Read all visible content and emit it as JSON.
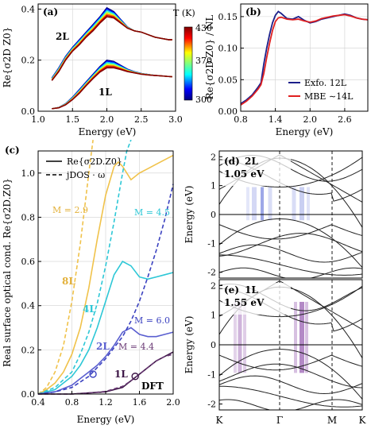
{
  "figure": {
    "panels": {
      "a": {
        "label": "(a)",
        "tag_2L": "2L",
        "tag_1L": "1L"
      },
      "b": {
        "label": "(b)"
      },
      "c": {
        "label": "(c)"
      },
      "d": {
        "label": "(d)",
        "layer": "2L",
        "energy": "1.05 eV"
      },
      "e": {
        "label": "(e)",
        "layer": "1L",
        "energy": "1.55 eV"
      }
    }
  },
  "chart_data": [
    {
      "panel": "a",
      "type": "line",
      "xlabel": "Energy (eV)",
      "ylabel": "Re{σ2D Z0}",
      "xlim": [
        1.0,
        3.0
      ],
      "ylim": [
        0.0,
        0.42
      ],
      "xticks": [
        "1.0",
        "1.5",
        "2.0",
        "2.5",
        "3.0"
      ],
      "yticks": [
        "0.0",
        "0.2",
        "0.4"
      ],
      "colorbar": {
        "title": "T (K)",
        "ticks": [
          "300",
          "370",
          "430"
        ],
        "range": [
          300,
          430
        ]
      },
      "groups": [
        {
          "label": "2L",
          "temperatures": [
            300,
            320,
            340,
            360,
            380,
            400,
            420,
            430
          ],
          "x": [
            1.2,
            1.3,
            1.4,
            1.5,
            1.6,
            1.7,
            1.8,
            1.9,
            2.0,
            2.1,
            2.2,
            2.3,
            2.4,
            2.5,
            2.6,
            2.7,
            2.8,
            2.9,
            2.95
          ],
          "y_at_300K": [
            0.13,
            0.17,
            0.215,
            0.25,
            0.28,
            0.31,
            0.34,
            0.37,
            0.405,
            0.39,
            0.36,
            0.33,
            0.315,
            0.31,
            0.3,
            0.29,
            0.285,
            0.28,
            0.28
          ],
          "y_at_430K": [
            0.12,
            0.155,
            0.2,
            0.235,
            0.26,
            0.29,
            0.315,
            0.345,
            0.37,
            0.365,
            0.345,
            0.325,
            0.315,
            0.31,
            0.3,
            0.29,
            0.285,
            0.28,
            0.28
          ]
        },
        {
          "label": "1L",
          "temperatures": [
            300,
            320,
            340,
            360,
            380,
            400,
            420,
            430
          ],
          "x": [
            1.2,
            1.3,
            1.4,
            1.5,
            1.6,
            1.7,
            1.8,
            1.9,
            2.0,
            2.1,
            2.2,
            2.3,
            2.4,
            2.5,
            2.6,
            2.7,
            2.8,
            2.9,
            2.95
          ],
          "y_at_300K": [
            0.01,
            0.015,
            0.03,
            0.055,
            0.085,
            0.115,
            0.145,
            0.175,
            0.2,
            0.195,
            0.18,
            0.165,
            0.155,
            0.148,
            0.144,
            0.14,
            0.138,
            0.136,
            0.135
          ],
          "y_at_430K": [
            0.01,
            0.013,
            0.025,
            0.045,
            0.07,
            0.1,
            0.128,
            0.153,
            0.17,
            0.17,
            0.163,
            0.155,
            0.15,
            0.145,
            0.142,
            0.14,
            0.138,
            0.136,
            0.135
          ]
        }
      ]
    },
    {
      "panel": "b",
      "type": "line",
      "xlabel": "Energy (eV)",
      "ylabel": "Re{σ2D·Z0} / NL",
      "xlim": [
        0.8,
        3.0
      ],
      "ylim": [
        0.0,
        0.17
      ],
      "xticks": [
        "0.8",
        "1.4",
        "2.0",
        "2.6"
      ],
      "yticks": [
        "0.00",
        "0.05",
        "0.10",
        "0.15"
      ],
      "legend": "bottom-right",
      "series": [
        {
          "name": "Exfo. 12L",
          "color": "#1b1f8a",
          "x": [
            0.8,
            0.9,
            1.0,
            1.1,
            1.15,
            1.2,
            1.25,
            1.3,
            1.35,
            1.4,
            1.45,
            1.5,
            1.6,
            1.7,
            1.8,
            1.9,
            2.0,
            2.1,
            2.2,
            2.3,
            2.4,
            2.5,
            2.6,
            2.7,
            2.8,
            2.9,
            3.0
          ],
          "y": [
            0.012,
            0.018,
            0.026,
            0.038,
            0.045,
            0.075,
            0.1,
            0.122,
            0.14,
            0.152,
            0.158,
            0.155,
            0.147,
            0.146,
            0.15,
            0.144,
            0.14,
            0.142,
            0.146,
            0.148,
            0.15,
            0.152,
            0.154,
            0.152,
            0.148,
            0.146,
            0.145
          ]
        },
        {
          "name": "MBE ∼14L",
          "color": "#e02020",
          "x": [
            0.8,
            0.9,
            1.0,
            1.1,
            1.15,
            1.2,
            1.25,
            1.3,
            1.35,
            1.4,
            1.45,
            1.5,
            1.6,
            1.7,
            1.8,
            1.9,
            2.0,
            2.1,
            2.2,
            2.3,
            2.4,
            2.5,
            2.6,
            2.7,
            2.8,
            2.9,
            3.0
          ],
          "y": [
            0.01,
            0.016,
            0.024,
            0.035,
            0.042,
            0.06,
            0.085,
            0.108,
            0.128,
            0.142,
            0.148,
            0.149,
            0.146,
            0.145,
            0.146,
            0.143,
            0.141,
            0.143,
            0.147,
            0.149,
            0.151,
            0.152,
            0.153,
            0.151,
            0.148,
            0.146,
            0.145
          ]
        }
      ]
    },
    {
      "panel": "c",
      "type": "line",
      "xlabel": "Energy (eV)",
      "ylabel": "Real surface optical cond. Re{σ2D.Z0}",
      "xlim": [
        0.4,
        2.0
      ],
      "ylim": [
        0.0,
        1.1
      ],
      "xticks": [
        "0.4",
        "0.8",
        "1.2",
        "1.6",
        "2.0"
      ],
      "yticks": [
        "0.0",
        "0.2",
        "0.4",
        "0.6",
        "0.8",
        "1.0"
      ],
      "legend": "top-left",
      "legend_entries": [
        "Re{σ2D.Z0}",
        "jDOS · ω"
      ],
      "series": [
        {
          "name": "8L",
          "color": "#f0c24a",
          "kind": "solid",
          "x": [
            0.4,
            0.5,
            0.6,
            0.7,
            0.8,
            0.9,
            1.0,
            1.1,
            1.2,
            1.3,
            1.35,
            1.4,
            1.5,
            1.6,
            1.7,
            1.8,
            1.9,
            2.0
          ],
          "y": [
            0.0,
            0.02,
            0.05,
            0.1,
            0.18,
            0.3,
            0.48,
            0.7,
            0.9,
            1.03,
            1.05,
            1.03,
            0.97,
            1.0,
            1.02,
            1.04,
            1.06,
            1.08
          ]
        },
        {
          "name": "M = 2.9",
          "color": "#f0c24a",
          "kind": "dashed",
          "x": [
            0.4,
            0.5,
            0.6,
            0.7,
            0.8,
            0.9,
            1.0,
            1.05
          ],
          "y": [
            0.0,
            0.03,
            0.1,
            0.22,
            0.42,
            0.68,
            1.0,
            1.15
          ]
        },
        {
          "name": "4L",
          "color": "#2cc7d6",
          "kind": "solid",
          "x": [
            0.4,
            0.6,
            0.8,
            0.9,
            1.0,
            1.1,
            1.2,
            1.3,
            1.4,
            1.5,
            1.6,
            1.7,
            1.8,
            1.9,
            2.0
          ],
          "y": [
            0.0,
            0.02,
            0.08,
            0.13,
            0.2,
            0.3,
            0.42,
            0.54,
            0.6,
            0.58,
            0.53,
            0.52,
            0.53,
            0.54,
            0.55
          ]
        },
        {
          "name": "M = 4.5",
          "color": "#2cc7d6",
          "kind": "dashed",
          "x": [
            0.4,
            0.6,
            0.8,
            0.9,
            1.0,
            1.1,
            1.2,
            1.3,
            1.4,
            1.45,
            1.5
          ],
          "y": [
            0.0,
            0.03,
            0.1,
            0.18,
            0.28,
            0.41,
            0.58,
            0.78,
            1.0,
            1.1,
            1.15
          ]
        },
        {
          "name": "2L",
          "color": "#5a5fd0",
          "kind": "solid",
          "x": [
            0.4,
            0.6,
            0.8,
            0.9,
            1.0,
            1.1,
            1.2,
            1.3,
            1.4,
            1.5,
            1.6,
            1.7,
            1.8,
            1.9,
            2.0
          ],
          "y": [
            0.0,
            0.01,
            0.04,
            0.07,
            0.1,
            0.13,
            0.17,
            0.22,
            0.28,
            0.3,
            0.27,
            0.26,
            0.26,
            0.27,
            0.28
          ]
        },
        {
          "name": "M = 6.0",
          "color": "#3b42c0",
          "kind": "dashed",
          "x": [
            0.4,
            0.6,
            0.8,
            1.0,
            1.2,
            1.4,
            1.5,
            1.6,
            1.7,
            1.8,
            1.9,
            2.0
          ],
          "y": [
            0.0,
            0.01,
            0.03,
            0.08,
            0.16,
            0.26,
            0.33,
            0.42,
            0.53,
            0.65,
            0.79,
            0.95
          ]
        },
        {
          "name": "1L",
          "color": "#3b1445",
          "kind": "solid",
          "x": [
            0.4,
            0.6,
            0.8,
            1.0,
            1.2,
            1.4,
            1.5,
            1.6,
            1.7,
            1.8,
            1.9,
            2.0
          ],
          "y": [
            0.0,
            0.0,
            0.0,
            0.005,
            0.01,
            0.03,
            0.06,
            0.09,
            0.12,
            0.15,
            0.17,
            0.19
          ]
        },
        {
          "name": "M = 4.4",
          "color": "#6a3a75",
          "kind": "dashed",
          "x": [
            0.4,
            0.6,
            0.8,
            1.0,
            1.2,
            1.4,
            1.5,
            1.6,
            1.7,
            1.8,
            1.9,
            2.0
          ],
          "y": [
            0.0,
            0.0,
            0.0,
            0.005,
            0.012,
            0.035,
            0.06,
            0.09,
            0.12,
            0.15,
            0.17,
            0.18
          ]
        }
      ],
      "annotations": [
        "M = 2.9",
        "M = 4.5",
        "M = 6.0",
        "M = 4.4",
        "8L",
        "4L",
        "2L",
        "1L",
        "DFT"
      ],
      "markers": [
        {
          "x": 1.05,
          "y": 0.09,
          "color": "#3b42c0",
          "shape": "open-circle"
        },
        {
          "x": 1.55,
          "y": 0.08,
          "color": "#3b1445",
          "shape": "open-circle"
        }
      ]
    },
    {
      "panel": "d",
      "type": "line",
      "ylabel": "Energy (eV)",
      "ylim": [
        -2.2,
        2.2
      ],
      "yticks": [
        "-2",
        "-1",
        "0",
        "1",
        "2"
      ],
      "kpath": [
        "K",
        "Γ",
        "M",
        "K"
      ],
      "transition_energy": "1.05 eV",
      "highlight_color": "#3a4fd0"
    },
    {
      "panel": "e",
      "type": "line",
      "xlabel": "",
      "ylabel": "Energy (eV)",
      "ylim": [
        -2.2,
        2.2
      ],
      "yticks": [
        "-2",
        "-1",
        "0",
        "1",
        "2"
      ],
      "kpath": [
        "K",
        "Γ",
        "M",
        "K"
      ],
      "transition_energy": "1.55 eV",
      "highlight_color": "#7a2f9a"
    }
  ]
}
